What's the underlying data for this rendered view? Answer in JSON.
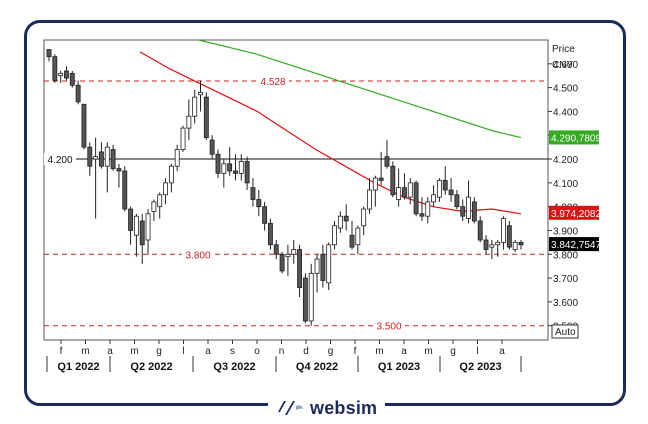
{
  "brand": {
    "name": "websim",
    "logo_icon": "websim-logo-icon",
    "color": "#1b2a5a"
  },
  "chart_data": {
    "type": "candlestick",
    "price_label": "Price",
    "currency_label": "CNY",
    "scale_button": "Auto",
    "ylim": [
      3.44,
      4.7
    ],
    "y_ticks": [
      "4.600",
      "4.500",
      "4.400",
      "4.300",
      "4.200",
      "4.100",
      "4.000",
      "3.900",
      "3.800",
      "3.700",
      "3.600",
      "3.500"
    ],
    "month_ticks": [
      "f",
      "m",
      "a",
      "m",
      "g",
      "l",
      "a",
      "s",
      "o",
      "n",
      "d",
      "g",
      "f",
      "m",
      "a",
      "m",
      "g",
      "l",
      "a"
    ],
    "quarters": [
      "Q1 2022",
      "Q2 2022",
      "Q3 2022",
      "Q4 2022",
      "Q1 2023",
      "Q2 2023"
    ],
    "levels": [
      {
        "label": "4.528",
        "value": 4.528,
        "style": "dashed",
        "color": "#cc2222"
      },
      {
        "label": "4.200",
        "value": 4.2,
        "style": "solid",
        "color": "#111111"
      },
      {
        "label": "3.800",
        "value": 3.8,
        "style": "dashed",
        "color": "#cc2222"
      },
      {
        "label": "3.500",
        "value": 3.5,
        "style": "dashed",
        "color": "#cc2222"
      }
    ],
    "last_value_labels": [
      {
        "label": "4.290,7809",
        "bg": "#33aa22",
        "color": "#ffffff",
        "value": 4.2908
      },
      {
        "label": "3.974,2082",
        "bg": "#dd1111",
        "color": "#ffffff",
        "value": 3.9742
      },
      {
        "label": "3.842,7547",
        "bg": "#000000",
        "color": "#ffffff",
        "value": 3.8428
      }
    ],
    "moving_averages": [
      {
        "color": "#33aa22",
        "values": [
          4.75,
          4.73,
          4.7,
          4.67,
          4.64,
          4.6,
          4.56,
          4.52,
          4.48,
          4.44,
          4.4,
          4.36,
          4.32,
          4.29
        ]
      },
      {
        "color": "#dd1111",
        "values": [
          4.65,
          4.58,
          4.52,
          4.46,
          4.4,
          4.32,
          4.24,
          4.17,
          4.1,
          4.04,
          4.0,
          3.98,
          3.99,
          3.97
        ]
      }
    ],
    "candles": [
      [
        4.66,
        4.66,
        4.61,
        4.63
      ],
      [
        4.63,
        4.64,
        4.52,
        4.53
      ],
      [
        4.55,
        4.57,
        4.52,
        4.56
      ],
      [
        4.57,
        4.59,
        4.53,
        4.54
      ],
      [
        4.56,
        4.57,
        4.5,
        4.51
      ],
      [
        4.51,
        4.53,
        4.43,
        4.44
      ],
      [
        4.43,
        4.43,
        4.24,
        4.25
      ],
      [
        4.25,
        4.27,
        4.13,
        4.17
      ],
      [
        4.2,
        4.29,
        3.95,
        4.21
      ],
      [
        4.23,
        4.27,
        4.16,
        4.17
      ],
      [
        4.17,
        4.27,
        4.06,
        4.25
      ],
      [
        4.24,
        4.26,
        4.15,
        4.16
      ],
      [
        4.16,
        4.18,
        4.08,
        4.15
      ],
      [
        4.15,
        4.17,
        3.98,
        3.99
      ],
      [
        3.99,
        4.0,
        3.84,
        3.9
      ],
      [
        3.88,
        3.97,
        3.79,
        3.96
      ],
      [
        3.94,
        3.97,
        3.76,
        3.84
      ],
      [
        3.86,
        3.99,
        3.8,
        3.97
      ],
      [
        3.98,
        4.03,
        3.94,
        4.02
      ],
      [
        4.0,
        4.06,
        3.95,
        4.05
      ],
      [
        4.05,
        4.12,
        4.01,
        4.1
      ],
      [
        4.1,
        4.18,
        4.06,
        4.17
      ],
      [
        4.17,
        4.26,
        4.15,
        4.24
      ],
      [
        4.24,
        4.34,
        4.23,
        4.33
      ],
      [
        4.33,
        4.45,
        4.28,
        4.38
      ],
      [
        4.38,
        4.49,
        4.35,
        4.46
      ],
      [
        4.47,
        4.53,
        4.4,
        4.48
      ],
      [
        4.46,
        4.48,
        4.28,
        4.29
      ],
      [
        4.28,
        4.3,
        4.2,
        4.22
      ],
      [
        4.22,
        4.24,
        4.12,
        4.14
      ],
      [
        4.14,
        4.2,
        4.08,
        4.18
      ],
      [
        4.18,
        4.25,
        4.13,
        4.15
      ],
      [
        4.15,
        4.22,
        4.11,
        4.14
      ],
      [
        4.14,
        4.22,
        4.11,
        4.19
      ],
      [
        4.19,
        4.21,
        4.07,
        4.1
      ],
      [
        4.08,
        4.12,
        4.0,
        4.03
      ],
      [
        4.03,
        4.07,
        3.96,
        4.0
      ],
      [
        4.0,
        4.02,
        3.9,
        3.93
      ],
      [
        3.93,
        3.95,
        3.82,
        3.84
      ],
      [
        3.84,
        3.86,
        3.78,
        3.8
      ],
      [
        3.8,
        3.81,
        3.72,
        3.73
      ],
      [
        3.79,
        3.84,
        3.71,
        3.8
      ],
      [
        3.8,
        3.86,
        3.76,
        3.82
      ],
      [
        3.82,
        3.84,
        3.62,
        3.66
      ],
      [
        3.7,
        3.72,
        3.51,
        3.52
      ],
      [
        3.52,
        3.76,
        3.5,
        3.72
      ],
      [
        3.72,
        3.8,
        3.64,
        3.78
      ],
      [
        3.8,
        3.84,
        3.66,
        3.69
      ],
      [
        3.68,
        3.85,
        3.65,
        3.84
      ],
      [
        3.84,
        3.94,
        3.82,
        3.92
      ],
      [
        3.91,
        3.98,
        3.89,
        3.96
      ],
      [
        3.96,
        4.01,
        3.9,
        3.94
      ],
      [
        3.88,
        3.94,
        3.82,
        3.83
      ],
      [
        3.84,
        3.92,
        3.8,
        3.91
      ],
      [
        3.92,
        4.0,
        3.88,
        3.99
      ],
      [
        3.99,
        4.12,
        3.97,
        4.07
      ],
      [
        4.07,
        4.13,
        4.0,
        4.12
      ],
      [
        4.12,
        4.23,
        4.09,
        4.11
      ],
      [
        4.21,
        4.28,
        4.16,
        4.17
      ],
      [
        4.17,
        4.19,
        4.04,
        4.05
      ],
      [
        4.03,
        4.16,
        4.0,
        4.08
      ],
      [
        4.08,
        4.14,
        4.03,
        4.04
      ],
      [
        4.04,
        4.12,
        4.01,
        4.1
      ],
      [
        4.1,
        4.11,
        3.96,
        3.97
      ],
      [
        3.97,
        4.04,
        3.94,
        3.96
      ],
      [
        3.96,
        4.04,
        3.93,
        4.02
      ],
      [
        4.02,
        4.09,
        4.0,
        4.05
      ],
      [
        4.04,
        4.12,
        4.02,
        4.11
      ],
      [
        4.11,
        4.17,
        4.05,
        4.07
      ],
      [
        4.07,
        4.12,
        4.02,
        4.05
      ],
      [
        4.05,
        4.07,
        3.99,
        4.0
      ],
      [
        4.0,
        4.03,
        3.94,
        3.96
      ],
      [
        3.95,
        4.11,
        3.93,
        4.04
      ],
      [
        4.02,
        4.04,
        3.93,
        3.94
      ],
      [
        3.94,
        3.96,
        3.85,
        3.86
      ],
      [
        3.86,
        3.88,
        3.8,
        3.82
      ],
      [
        3.83,
        3.86,
        3.78,
        3.84
      ],
      [
        3.84,
        3.86,
        3.79,
        3.85
      ],
      [
        3.85,
        3.96,
        3.82,
        3.95
      ],
      [
        3.92,
        3.94,
        3.82,
        3.83
      ],
      [
        3.82,
        3.86,
        3.81,
        3.85
      ],
      [
        3.85,
        3.86,
        3.82,
        3.84
      ]
    ]
  }
}
